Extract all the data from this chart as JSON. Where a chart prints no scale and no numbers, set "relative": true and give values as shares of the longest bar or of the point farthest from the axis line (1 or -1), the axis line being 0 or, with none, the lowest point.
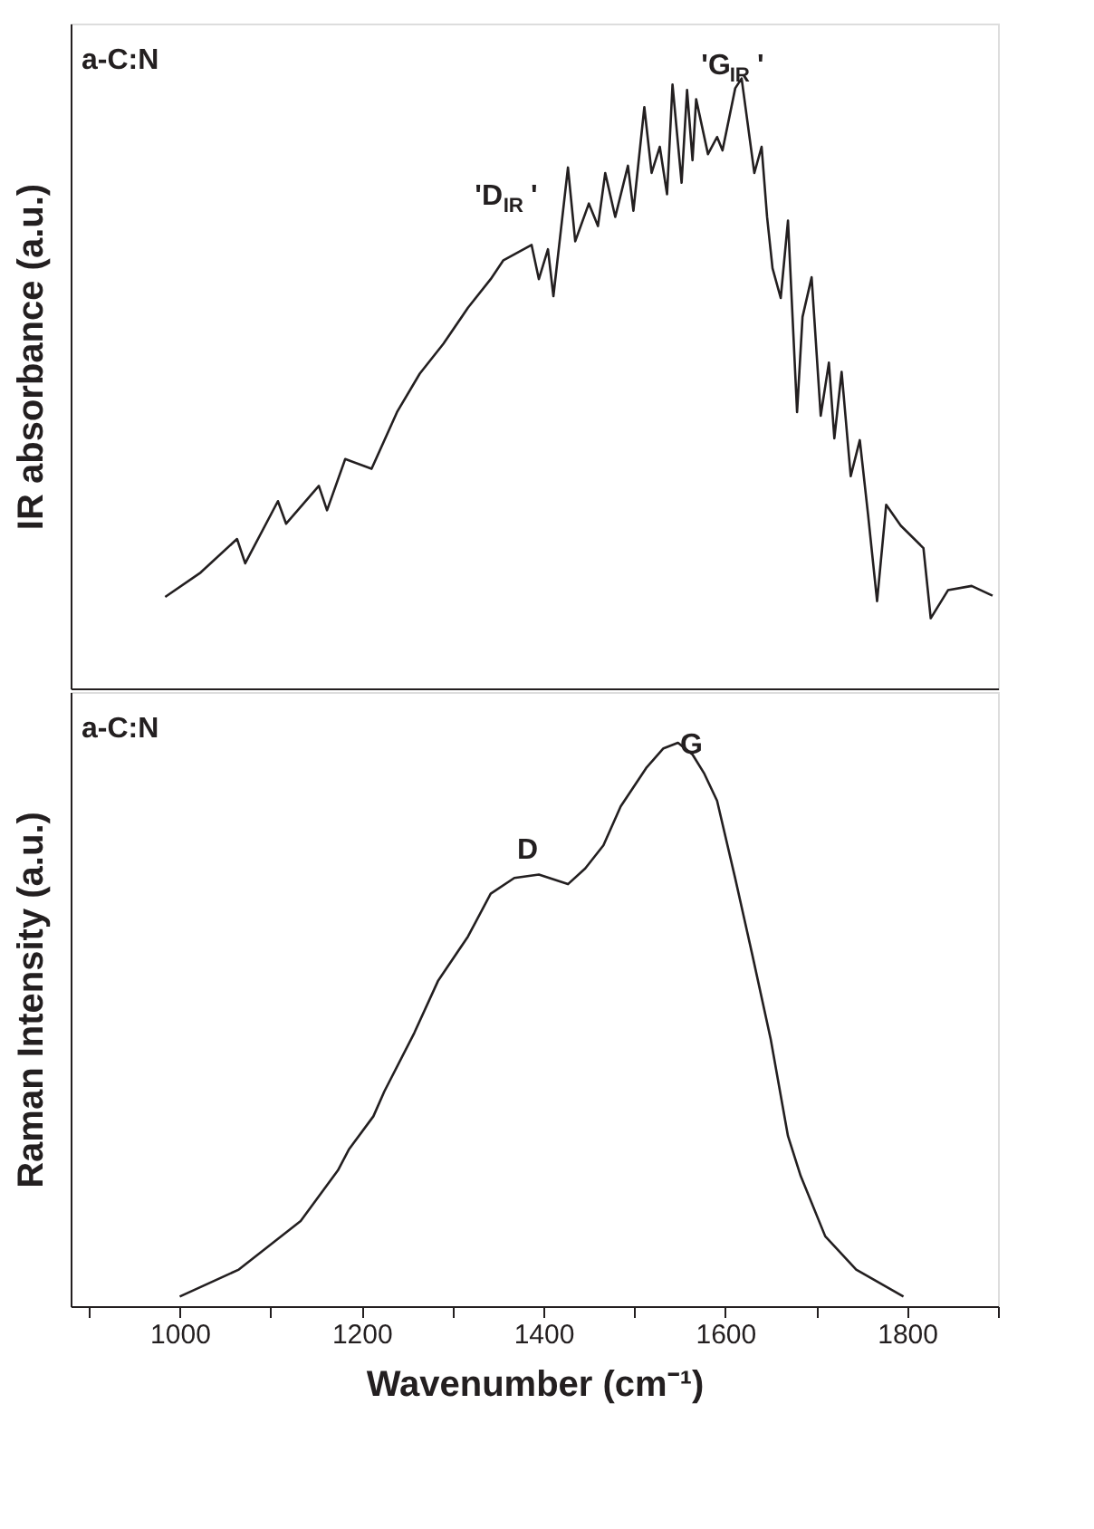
{
  "chart_data": [
    {
      "type": "line",
      "relative": true,
      "ylabel": "IR absorbance (a.u.)",
      "xlim": [
        880,
        1900
      ],
      "tick_labels": false,
      "grid": false,
      "marker": "none",
      "line_style": "solid",
      "annotations": [
        "a-C:N",
        "'D$_{IR}$'",
        "'G$_{IR}$'"
      ],
      "series": [
        {
          "color": "#231f20",
          "x": [
            984,
            1023,
            1063,
            1072,
            1108,
            1117,
            1153,
            1162,
            1182,
            1211,
            1239,
            1264,
            1290,
            1317,
            1342,
            1356,
            1387,
            1395,
            1405,
            1411,
            1427,
            1435,
            1450,
            1460,
            1468,
            1479,
            1493,
            1499,
            1511,
            1519,
            1528,
            1536,
            1542,
            1552,
            1558,
            1564,
            1568,
            1581,
            1591,
            1597,
            1611,
            1618,
            1632,
            1640,
            1646,
            1652,
            1661,
            1669,
            1679,
            1685,
            1695,
            1705,
            1714,
            1720,
            1728,
            1738,
            1748,
            1757,
            1767,
            1777,
            1793,
            1818,
            1826,
            1845,
            1871,
            1894
          ],
          "values": [
            0.15,
            0.19,
            0.245,
            0.205,
            0.307,
            0.27,
            0.332,
            0.292,
            0.376,
            0.36,
            0.453,
            0.516,
            0.565,
            0.624,
            0.671,
            0.702,
            0.727,
            0.671,
            0.72,
            0.643,
            0.854,
            0.733,
            0.795,
            0.758,
            0.845,
            0.773,
            0.857,
            0.783,
            0.953,
            0.845,
            0.888,
            0.81,
            0.99,
            0.829,
            0.981,
            0.866,
            0.966,
            0.876,
            0.904,
            0.882,
            0.984,
            1.0,
            0.845,
            0.888,
            0.773,
            0.689,
            0.64,
            0.767,
            0.453,
            0.609,
            0.674,
            0.447,
            0.534,
            0.41,
            0.519,
            0.348,
            0.407,
            0.286,
            0.143,
            0.301,
            0.267,
            0.23,
            0.115,
            0.161,
            0.168,
            0.152
          ]
        }
      ]
    },
    {
      "type": "line",
      "relative": true,
      "ylabel": "Raman Intensity (a.u.)",
      "xlabel": "Wavenumber (cm⁻¹)",
      "xlim": [
        880,
        1900
      ],
      "tick_labels": "x",
      "grid": false,
      "marker": "none",
      "line_style": "solid",
      "xticks": [
        {
          "value": 900,
          "label": null
        },
        1000,
        {
          "value": 1100,
          "label": null
        },
        1200,
        {
          "value": 1300,
          "label": null
        },
        1400,
        {
          "value": 1500,
          "label": null
        },
        1600,
        {
          "value": 1700,
          "label": null
        },
        1800,
        {
          "value": 1900,
          "label": null
        }
      ],
      "annotations": [
        "a-C:N",
        "D",
        "G"
      ],
      "series": [
        {
          "color": "#231f20",
          "x": [
            1000,
            1065,
            1133,
            1174,
            1186,
            1213,
            1225,
            1258,
            1284,
            1317,
            1342,
            1368,
            1395,
            1427,
            1446,
            1466,
            1485,
            1513,
            1532,
            1548,
            1564,
            1577,
            1591,
            1611,
            1630,
            1650,
            1669,
            1683,
            1710,
            1744,
            1796
          ],
          "values": [
            0.017,
            0.065,
            0.151,
            0.241,
            0.278,
            0.337,
            0.381,
            0.485,
            0.577,
            0.656,
            0.732,
            0.76,
            0.766,
            0.749,
            0.777,
            0.818,
            0.887,
            0.955,
            0.99,
            1.0,
            0.979,
            0.945,
            0.897,
            0.759,
            0.622,
            0.474,
            0.302,
            0.231,
            0.124,
            0.065,
            0.017
          ]
        }
      ]
    }
  ]
}
